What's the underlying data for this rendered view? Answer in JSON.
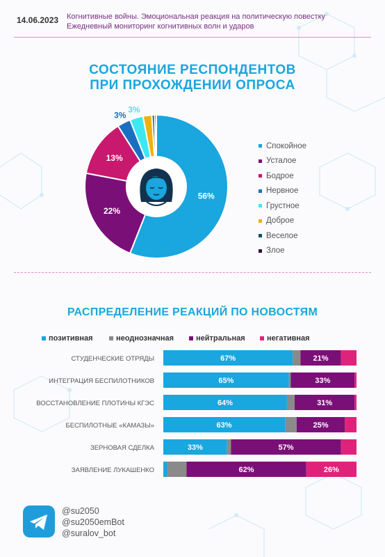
{
  "header": {
    "date": "14.06.2023",
    "line1": "Когнитивные войны. Эмоциональная реакция на политическую повестку",
    "line2": "Ежедневный мониторинг когнитивных волн и ударов"
  },
  "chart_data": [
    {
      "type": "pie",
      "title_lines": [
        "СОСТОЯНИЕ РЕСПОНДЕНТОВ",
        "ПРИ ПРОХОЖДЕНИИ ОПРОСА"
      ],
      "labels": [
        "Спокойное",
        "Усталое",
        "Бодрое",
        "Нервное",
        "Грустное",
        "Доброе",
        "Веселое",
        "Злое"
      ],
      "values": [
        56,
        22,
        13,
        3,
        3,
        2,
        0.6,
        0.4
      ],
      "data_labels": [
        "56%",
        "22%",
        "13%",
        "3%",
        "3%",
        "",
        "",
        ""
      ],
      "colors": [
        "#1aa6de",
        "#7b0f78",
        "#c8196e",
        "#1a6fc1",
        "#3ee8f2",
        "#efb10c",
        "#0e5367",
        "#3a0a3a"
      ],
      "legend_position": "right",
      "center_icon": "woman-face-icon"
    },
    {
      "type": "bar",
      "stacked": true,
      "title": "РАСПРЕДЕЛЕНИЕ РЕАКЦИЙ ПО НОВОСТЯМ",
      "legend_position": "top",
      "categories": [
        "СТУДЕНЧЕСКИЕ ОТРЯДЫ",
        "ИНТЕГРАЦИЯ БЕСПИЛОТНИКОВ",
        "ВОССТАНОВЛЕНИЕ ПЛОТИНЫ КГЭС",
        "БЕСПИЛОТНЫЕ «КАМАЗЫ»",
        "ЗЕРНОВАЯ СДЕЛКА",
        "ЗАЯВЛЕНИЕ ЛУКАШЕНКО"
      ],
      "series": [
        {
          "name": "позитивная",
          "color": "#1aa6de",
          "values": [
            67,
            65,
            64,
            63,
            33,
            2
          ],
          "labels": [
            "67%",
            "65%",
            "64%",
            "63%",
            "33%",
            ""
          ]
        },
        {
          "name": "неоднозначная",
          "color": "#8a8a8a",
          "values": [
            4,
            1,
            4,
            6,
            2,
            10
          ],
          "labels": [
            "",
            "",
            "",
            "",
            "",
            ""
          ]
        },
        {
          "name": "нейтральная",
          "color": "#7b0f78",
          "values": [
            21,
            33,
            31,
            25,
            57,
            62
          ],
          "labels": [
            "21%",
            "33%",
            "31%",
            "25%",
            "57%",
            "62%"
          ]
        },
        {
          "name": "негативная",
          "color": "#e0237a",
          "values": [
            8,
            1,
            1,
            6,
            8,
            26
          ],
          "labels": [
            "",
            "",
            "",
            "",
            "",
            "26%"
          ]
        }
      ]
    }
  ],
  "footer": {
    "handles": [
      "@su2050",
      "@su2050emBot",
      "@suralov_bot"
    ],
    "icon": "telegram-icon"
  }
}
